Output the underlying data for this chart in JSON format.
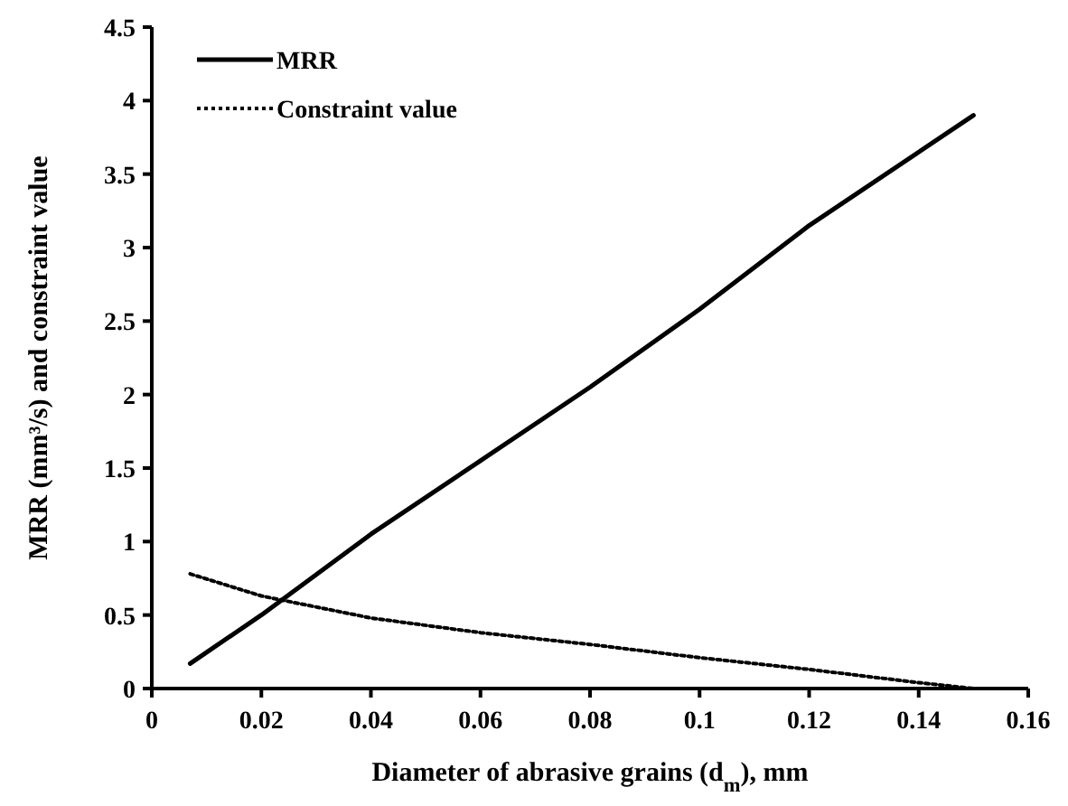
{
  "chart_data": {
    "type": "line",
    "xlabel": "Diameter of abrasive grains (d$_{m}$), mm",
    "ylabel": "MRR (mm³/s) and constraint value",
    "xlim": [
      0,
      0.16
    ],
    "xticks": [
      0,
      0.02,
      0.04,
      0.06,
      0.08,
      0.1,
      0.12,
      0.14,
      0.16
    ],
    "ylim": [
      0,
      4.5
    ],
    "yticks": [
      0,
      0.5,
      1,
      1.5,
      2,
      2.5,
      3,
      3.5,
      4,
      4.5
    ],
    "grid": false,
    "legend": "top left",
    "marker": "none",
    "series": [
      {
        "name": "MRR",
        "color": "#000000",
        "line_style": "solid",
        "x": [
          0.007,
          0.02,
          0.04,
          0.06,
          0.08,
          0.1,
          0.12,
          0.15
        ],
        "values": [
          0.17,
          0.5,
          1.05,
          1.55,
          2.05,
          2.58,
          3.15,
          3.9
        ]
      },
      {
        "name": "Constraint value",
        "color": "#000000",
        "line_style": "dotted",
        "x": [
          0.007,
          0.02,
          0.04,
          0.06,
          0.08,
          0.1,
          0.12,
          0.14,
          0.15
        ],
        "values": [
          0.78,
          0.63,
          0.48,
          0.38,
          0.3,
          0.21,
          0.13,
          0.04,
          0.0
        ]
      }
    ]
  }
}
